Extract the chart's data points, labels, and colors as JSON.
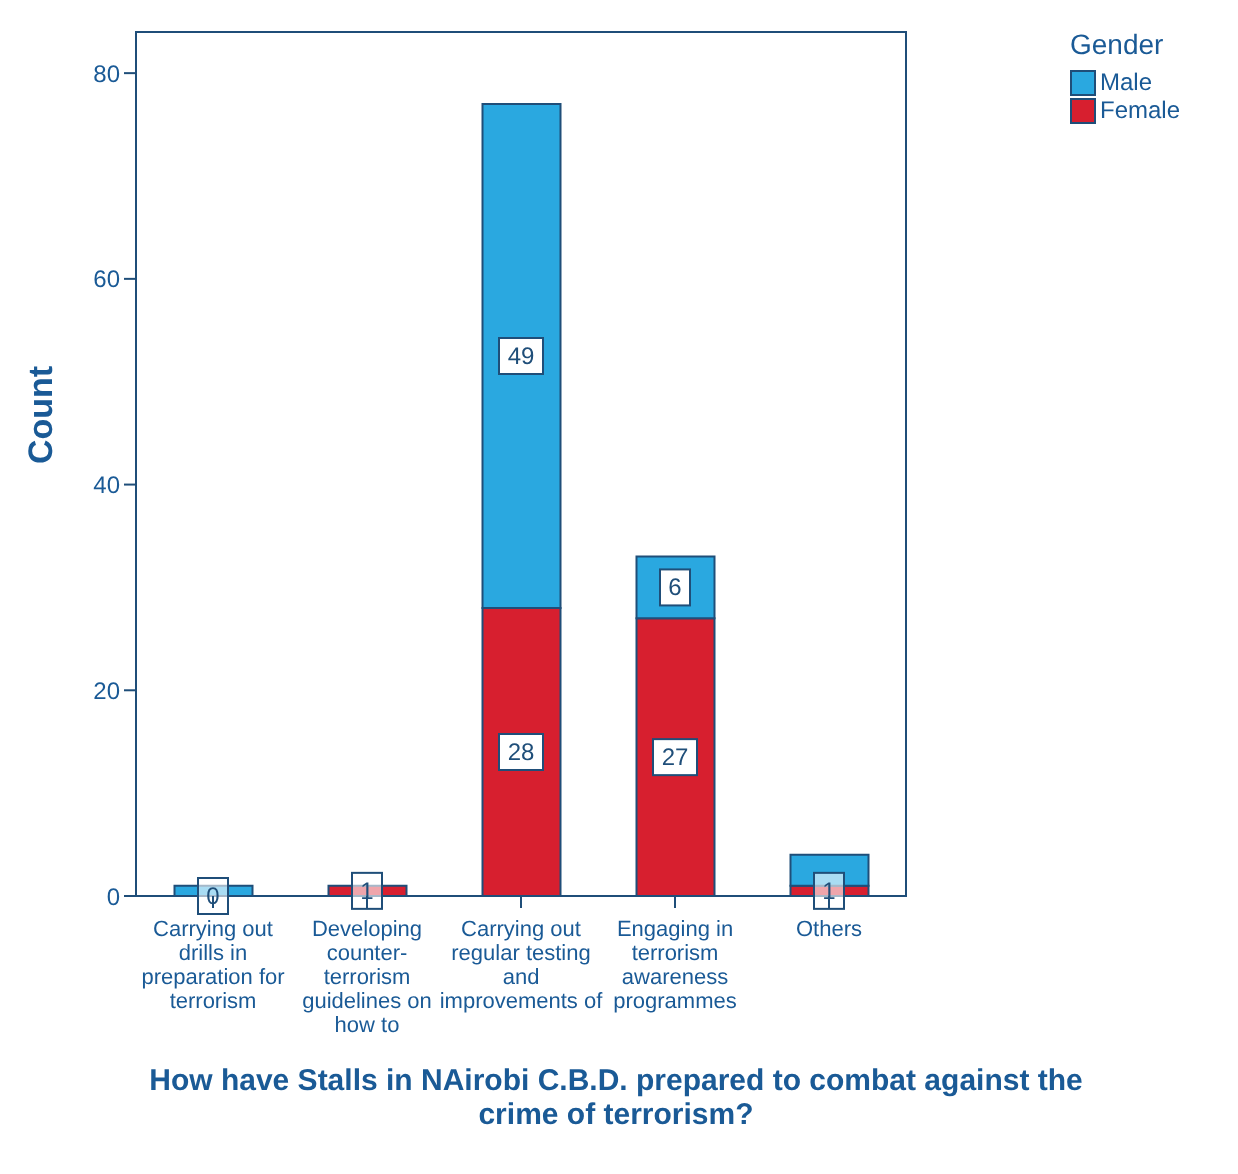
{
  "chart_data": {
    "type": "bar",
    "stacked": true,
    "xlabel": "How have Stalls in NAirobi C.B.D. prepared to combat against the crime of terrorism?",
    "ylabel": "Count",
    "legend_title": "Gender",
    "legend": "top right",
    "grid": false,
    "categories": [
      "Carrying out drills in preparation for terrorism",
      "Developing counter-terrorism guidelines on how to",
      "Carrying out regular testing and improvements of",
      "Engaging in terrorism awareness programmes",
      "Others"
    ],
    "ylim": [
      0,
      84
    ],
    "yticks": [
      0,
      20,
      40,
      60,
      80
    ],
    "series": [
      {
        "name": "Female",
        "color": "#d71f2f",
        "values": [
          0,
          1,
          28,
          27,
          1
        ],
        "value_labels": [
          "0",
          "1",
          "28",
          "27",
          "1"
        ]
      },
      {
        "name": "Male",
        "color": "#2aa8e0",
        "values": [
          1,
          0,
          49,
          6,
          3
        ],
        "value_labels": [
          null,
          null,
          "49",
          "6",
          null
        ]
      }
    ]
  }
}
